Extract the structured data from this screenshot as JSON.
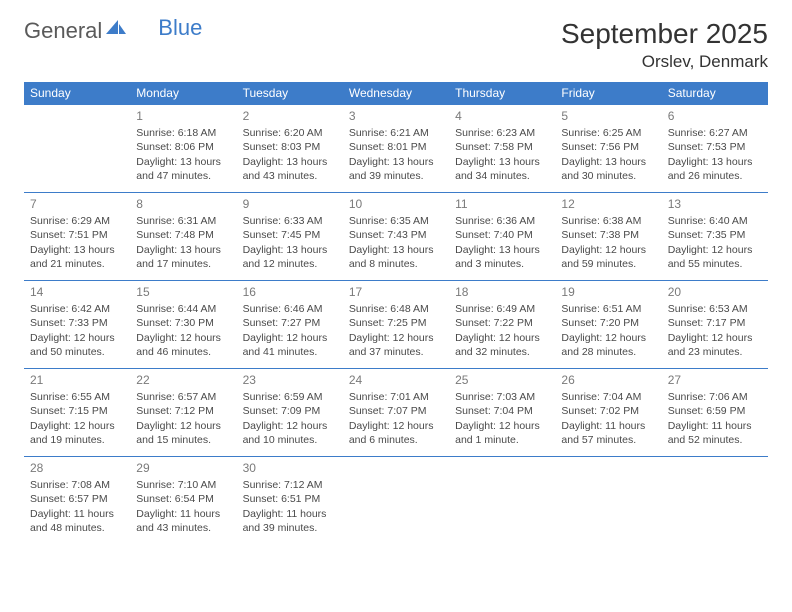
{
  "brand": {
    "part1": "General",
    "part2": "Blue"
  },
  "header": {
    "monthTitle": "September 2025",
    "location": "Orslev, Denmark"
  },
  "colors": {
    "accent": "#3d7cc9",
    "text": "#333333",
    "muted": "#7a7a7a",
    "bg": "#ffffff"
  },
  "dayHeaders": [
    "Sunday",
    "Monday",
    "Tuesday",
    "Wednesday",
    "Thursday",
    "Friday",
    "Saturday"
  ],
  "weeks": [
    [
      null,
      {
        "n": "1",
        "sunrise": "Sunrise: 6:18 AM",
        "sunset": "Sunset: 8:06 PM",
        "day1": "Daylight: 13 hours",
        "day2": "and 47 minutes."
      },
      {
        "n": "2",
        "sunrise": "Sunrise: 6:20 AM",
        "sunset": "Sunset: 8:03 PM",
        "day1": "Daylight: 13 hours",
        "day2": "and 43 minutes."
      },
      {
        "n": "3",
        "sunrise": "Sunrise: 6:21 AM",
        "sunset": "Sunset: 8:01 PM",
        "day1": "Daylight: 13 hours",
        "day2": "and 39 minutes."
      },
      {
        "n": "4",
        "sunrise": "Sunrise: 6:23 AM",
        "sunset": "Sunset: 7:58 PM",
        "day1": "Daylight: 13 hours",
        "day2": "and 34 minutes."
      },
      {
        "n": "5",
        "sunrise": "Sunrise: 6:25 AM",
        "sunset": "Sunset: 7:56 PM",
        "day1": "Daylight: 13 hours",
        "day2": "and 30 minutes."
      },
      {
        "n": "6",
        "sunrise": "Sunrise: 6:27 AM",
        "sunset": "Sunset: 7:53 PM",
        "day1": "Daylight: 13 hours",
        "day2": "and 26 minutes."
      }
    ],
    [
      {
        "n": "7",
        "sunrise": "Sunrise: 6:29 AM",
        "sunset": "Sunset: 7:51 PM",
        "day1": "Daylight: 13 hours",
        "day2": "and 21 minutes."
      },
      {
        "n": "8",
        "sunrise": "Sunrise: 6:31 AM",
        "sunset": "Sunset: 7:48 PM",
        "day1": "Daylight: 13 hours",
        "day2": "and 17 minutes."
      },
      {
        "n": "9",
        "sunrise": "Sunrise: 6:33 AM",
        "sunset": "Sunset: 7:45 PM",
        "day1": "Daylight: 13 hours",
        "day2": "and 12 minutes."
      },
      {
        "n": "10",
        "sunrise": "Sunrise: 6:35 AM",
        "sunset": "Sunset: 7:43 PM",
        "day1": "Daylight: 13 hours",
        "day2": "and 8 minutes."
      },
      {
        "n": "11",
        "sunrise": "Sunrise: 6:36 AM",
        "sunset": "Sunset: 7:40 PM",
        "day1": "Daylight: 13 hours",
        "day2": "and 3 minutes."
      },
      {
        "n": "12",
        "sunrise": "Sunrise: 6:38 AM",
        "sunset": "Sunset: 7:38 PM",
        "day1": "Daylight: 12 hours",
        "day2": "and 59 minutes."
      },
      {
        "n": "13",
        "sunrise": "Sunrise: 6:40 AM",
        "sunset": "Sunset: 7:35 PM",
        "day1": "Daylight: 12 hours",
        "day2": "and 55 minutes."
      }
    ],
    [
      {
        "n": "14",
        "sunrise": "Sunrise: 6:42 AM",
        "sunset": "Sunset: 7:33 PM",
        "day1": "Daylight: 12 hours",
        "day2": "and 50 minutes."
      },
      {
        "n": "15",
        "sunrise": "Sunrise: 6:44 AM",
        "sunset": "Sunset: 7:30 PM",
        "day1": "Daylight: 12 hours",
        "day2": "and 46 minutes."
      },
      {
        "n": "16",
        "sunrise": "Sunrise: 6:46 AM",
        "sunset": "Sunset: 7:27 PM",
        "day1": "Daylight: 12 hours",
        "day2": "and 41 minutes."
      },
      {
        "n": "17",
        "sunrise": "Sunrise: 6:48 AM",
        "sunset": "Sunset: 7:25 PM",
        "day1": "Daylight: 12 hours",
        "day2": "and 37 minutes."
      },
      {
        "n": "18",
        "sunrise": "Sunrise: 6:49 AM",
        "sunset": "Sunset: 7:22 PM",
        "day1": "Daylight: 12 hours",
        "day2": "and 32 minutes."
      },
      {
        "n": "19",
        "sunrise": "Sunrise: 6:51 AM",
        "sunset": "Sunset: 7:20 PM",
        "day1": "Daylight: 12 hours",
        "day2": "and 28 minutes."
      },
      {
        "n": "20",
        "sunrise": "Sunrise: 6:53 AM",
        "sunset": "Sunset: 7:17 PM",
        "day1": "Daylight: 12 hours",
        "day2": "and 23 minutes."
      }
    ],
    [
      {
        "n": "21",
        "sunrise": "Sunrise: 6:55 AM",
        "sunset": "Sunset: 7:15 PM",
        "day1": "Daylight: 12 hours",
        "day2": "and 19 minutes."
      },
      {
        "n": "22",
        "sunrise": "Sunrise: 6:57 AM",
        "sunset": "Sunset: 7:12 PM",
        "day1": "Daylight: 12 hours",
        "day2": "and 15 minutes."
      },
      {
        "n": "23",
        "sunrise": "Sunrise: 6:59 AM",
        "sunset": "Sunset: 7:09 PM",
        "day1": "Daylight: 12 hours",
        "day2": "and 10 minutes."
      },
      {
        "n": "24",
        "sunrise": "Sunrise: 7:01 AM",
        "sunset": "Sunset: 7:07 PM",
        "day1": "Daylight: 12 hours",
        "day2": "and 6 minutes."
      },
      {
        "n": "25",
        "sunrise": "Sunrise: 7:03 AM",
        "sunset": "Sunset: 7:04 PM",
        "day1": "Daylight: 12 hours",
        "day2": "and 1 minute."
      },
      {
        "n": "26",
        "sunrise": "Sunrise: 7:04 AM",
        "sunset": "Sunset: 7:02 PM",
        "day1": "Daylight: 11 hours",
        "day2": "and 57 minutes."
      },
      {
        "n": "27",
        "sunrise": "Sunrise: 7:06 AM",
        "sunset": "Sunset: 6:59 PM",
        "day1": "Daylight: 11 hours",
        "day2": "and 52 minutes."
      }
    ],
    [
      {
        "n": "28",
        "sunrise": "Sunrise: 7:08 AM",
        "sunset": "Sunset: 6:57 PM",
        "day1": "Daylight: 11 hours",
        "day2": "and 48 minutes."
      },
      {
        "n": "29",
        "sunrise": "Sunrise: 7:10 AM",
        "sunset": "Sunset: 6:54 PM",
        "day1": "Daylight: 11 hours",
        "day2": "and 43 minutes."
      },
      {
        "n": "30",
        "sunrise": "Sunrise: 7:12 AM",
        "sunset": "Sunset: 6:51 PM",
        "day1": "Daylight: 11 hours",
        "day2": "and 39 minutes."
      },
      null,
      null,
      null,
      null
    ]
  ]
}
